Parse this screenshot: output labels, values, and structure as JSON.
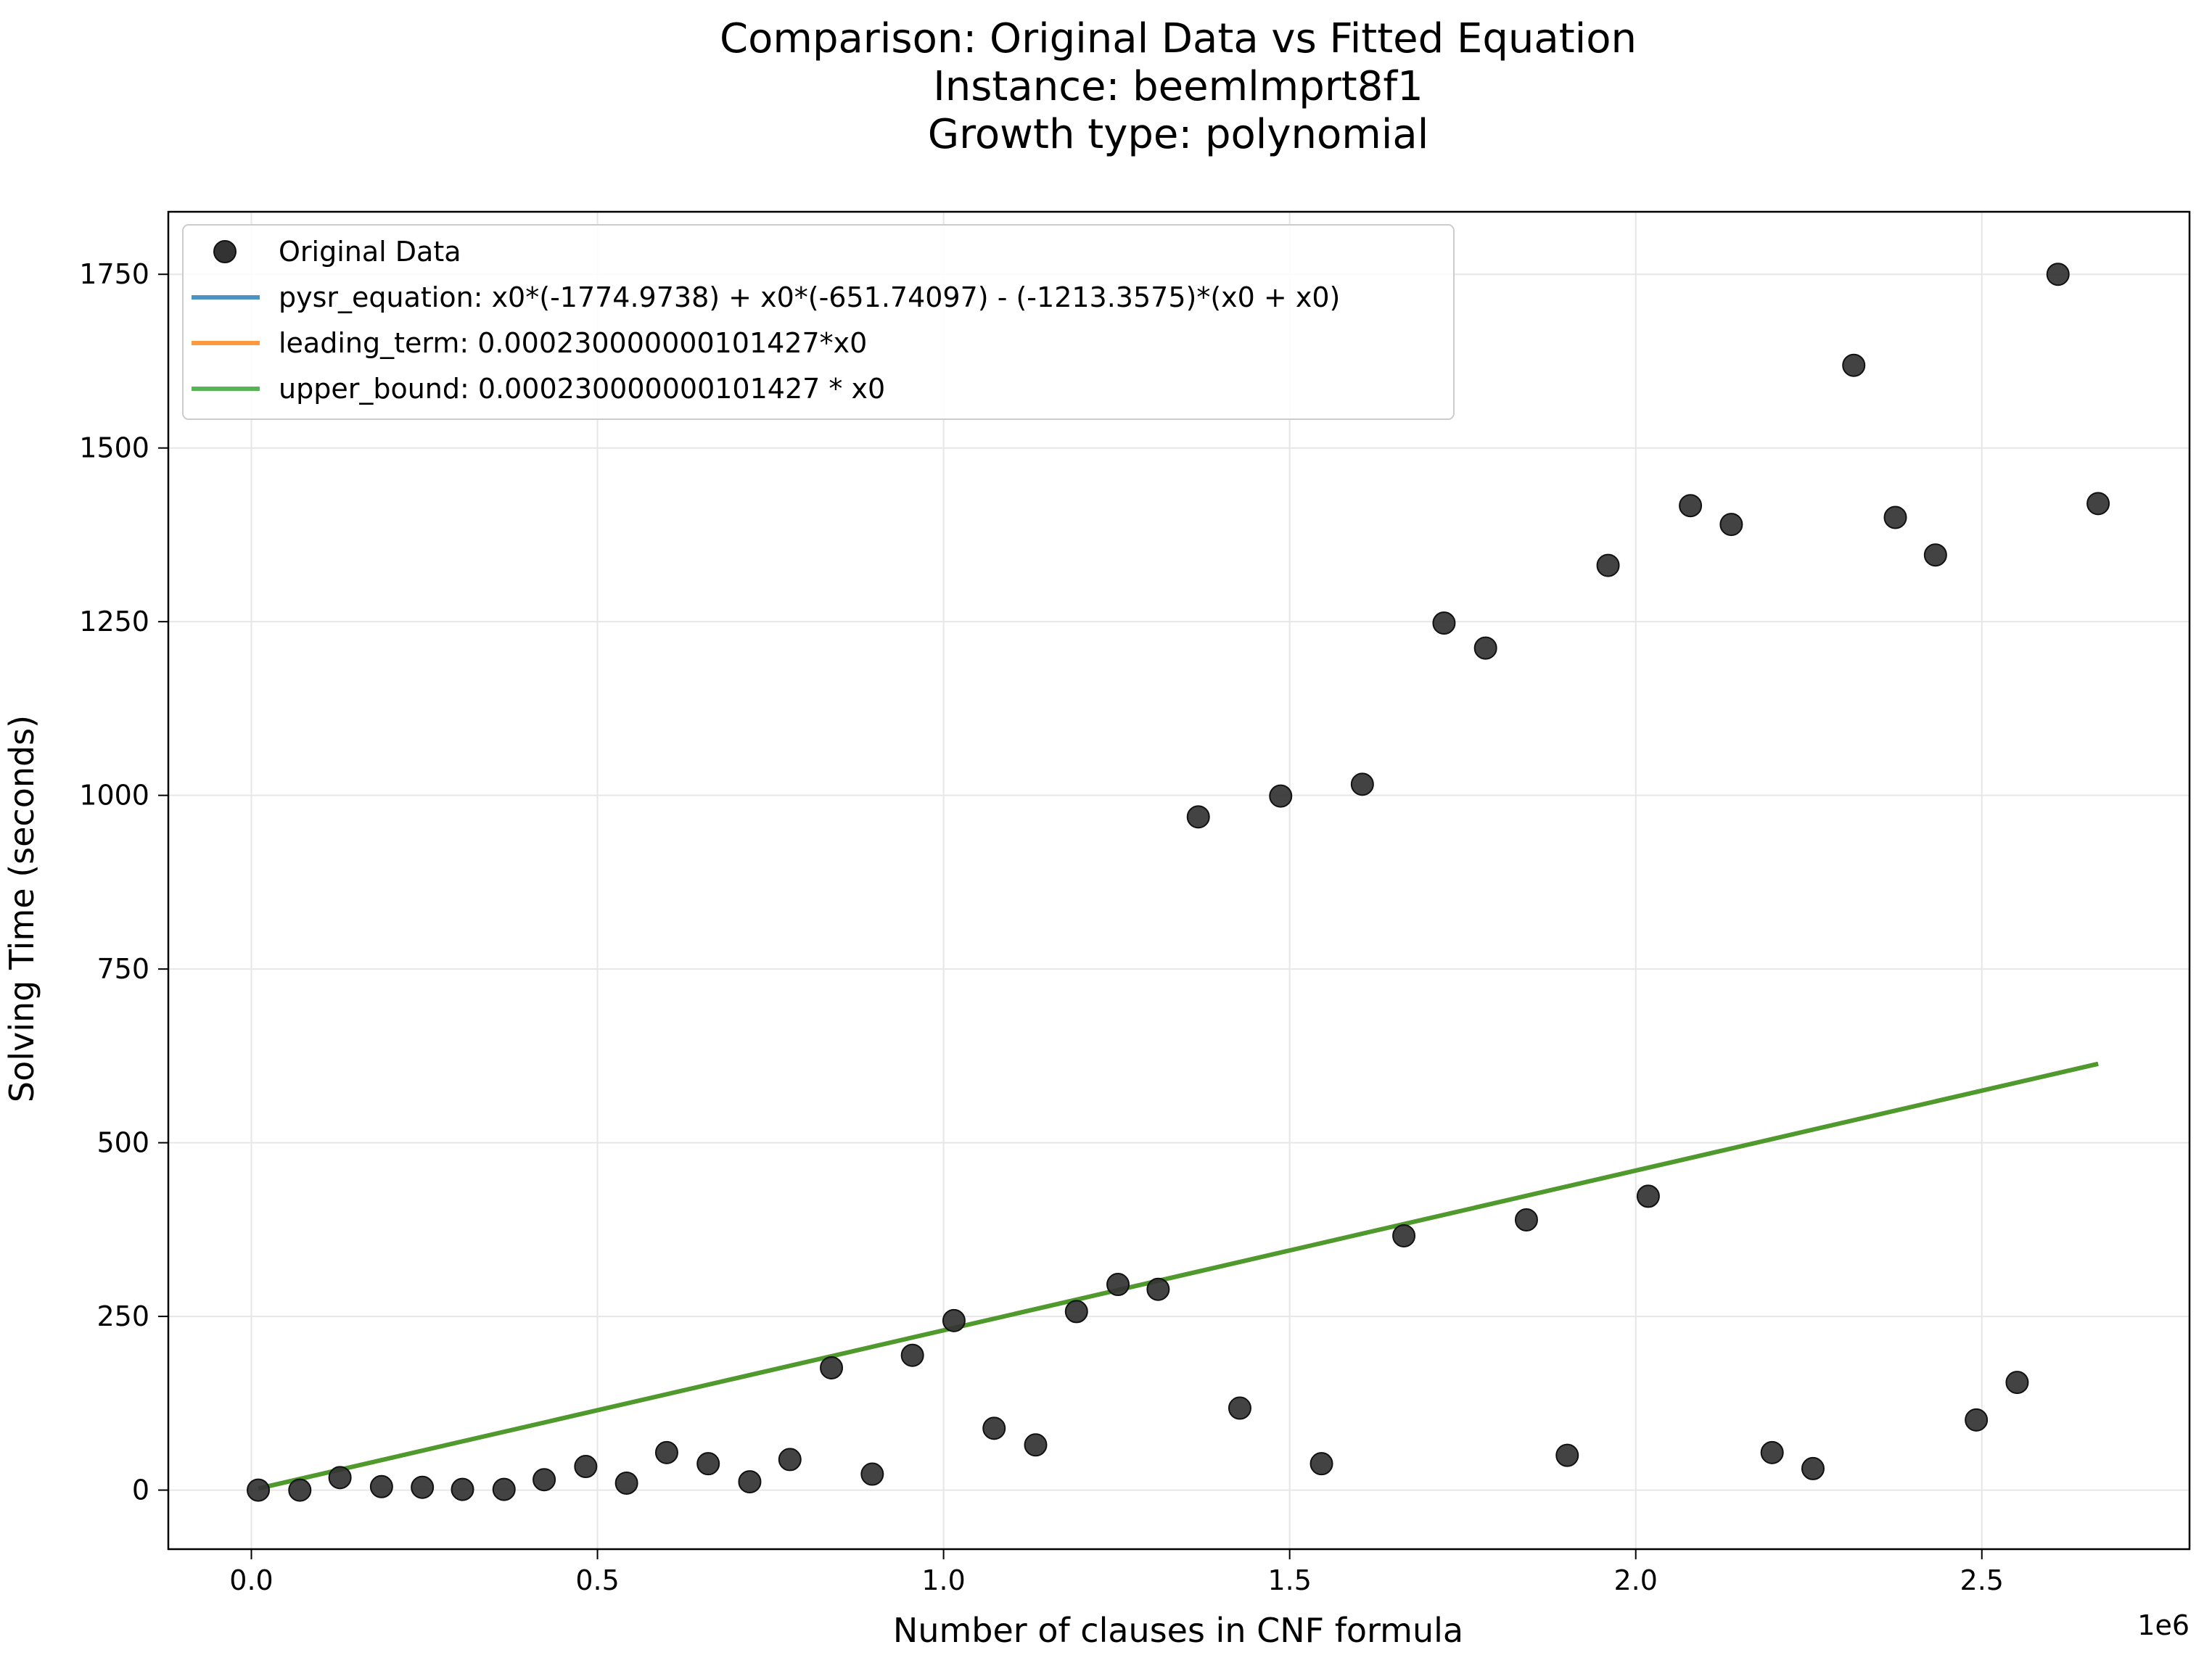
{
  "chart_data": {
    "type": "scatter",
    "title_lines": [
      "Comparison: Original Data vs Fitted Equation",
      "Instance: beemlmprt8f1",
      "Growth type: polynomial"
    ],
    "xlabel": "Number of clauses in CNF formula",
    "ylabel": "Solving Time (seconds)",
    "x_offset_label": "1e6",
    "xlim": [
      -120000,
      2800000
    ],
    "ylim": [
      -85,
      1840
    ],
    "xticks": [
      0,
      500000,
      1000000,
      1500000,
      2000000,
      2500000
    ],
    "xtick_labels": [
      "0.0",
      "0.5",
      "1.0",
      "1.5",
      "2.0",
      "2.5"
    ],
    "yticks": [
      0,
      250,
      500,
      750,
      1000,
      1250,
      1500,
      1750
    ],
    "ytick_labels": [
      "0",
      "250",
      "500",
      "750",
      "1000",
      "1250",
      "1500",
      "1750"
    ],
    "grid": true,
    "legend_position": "top-left",
    "scatter": {
      "name": "Original Data",
      "color": "#333333",
      "points": [
        [
          10000,
          0
        ],
        [
          70000,
          0
        ],
        [
          128000,
          18
        ],
        [
          188000,
          5
        ],
        [
          247000,
          4
        ],
        [
          305000,
          1
        ],
        [
          365000,
          1
        ],
        [
          423000,
          15
        ],
        [
          483000,
          34
        ],
        [
          542000,
          10
        ],
        [
          600000,
          54
        ],
        [
          660000,
          38
        ],
        [
          720000,
          12
        ],
        [
          778000,
          44
        ],
        [
          838000,
          176
        ],
        [
          897000,
          23
        ],
        [
          955000,
          194
        ],
        [
          1015000,
          244
        ],
        [
          1073000,
          89
        ],
        [
          1133000,
          65
        ],
        [
          1192000,
          257
        ],
        [
          1252000,
          296
        ],
        [
          1310000,
          289
        ],
        [
          1368000,
          969
        ],
        [
          1428000,
          118
        ],
        [
          1487000,
          999
        ],
        [
          1546000,
          38
        ],
        [
          1605000,
          1016
        ],
        [
          1665000,
          366
        ],
        [
          1723000,
          1248
        ],
        [
          1783000,
          1212
        ],
        [
          1842000,
          389
        ],
        [
          1901000,
          50
        ],
        [
          1960000,
          1331
        ],
        [
          2018000,
          423
        ],
        [
          2079000,
          1417
        ],
        [
          2138000,
          1390
        ],
        [
          2197000,
          54
        ],
        [
          2256000,
          31
        ],
        [
          2315000,
          1619
        ],
        [
          2375000,
          1400
        ],
        [
          2433000,
          1346
        ],
        [
          2492000,
          101
        ],
        [
          2551000,
          155
        ],
        [
          2610000,
          1750
        ],
        [
          2668000,
          1420
        ]
      ]
    },
    "lines": [
      {
        "name": "pysr_equation: x0*(-1774.9738) + x0*(-651.74097) - (-1213.3575)*(x0 + x0)",
        "color": "#1f77b4",
        "x": [
          10000,
          2668000
        ],
        "y": [
          2.3,
          613.6
        ]
      },
      {
        "name": "leading_term: 0.000230000000101427*x0",
        "color": "#ff7f0e",
        "x": [
          10000,
          2668000
        ],
        "y": [
          2.3,
          613.6
        ]
      },
      {
        "name": "upper_bound: 0.000230000000101427 * x0",
        "color": "#2ca02c",
        "x": [
          10000,
          2668000
        ],
        "y": [
          2.3,
          613.6
        ]
      }
    ]
  }
}
